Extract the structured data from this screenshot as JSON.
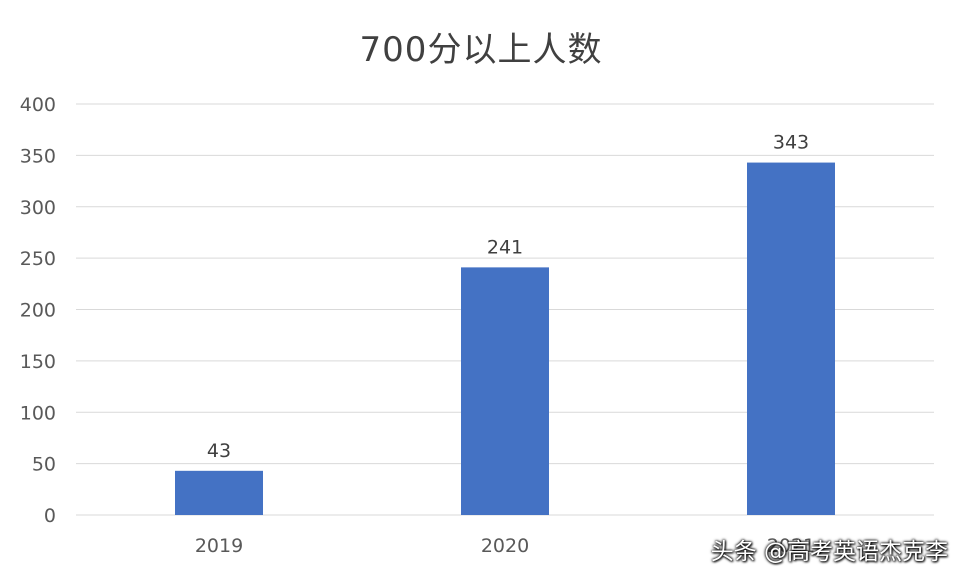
{
  "chart_data": {
    "type": "bar",
    "title": "700分以上人数",
    "categories": [
      "2019",
      "2020",
      "2021"
    ],
    "values": [
      43,
      241,
      343
    ],
    "ylim": [
      0,
      400
    ],
    "yticks": [
      0,
      50,
      100,
      150,
      200,
      250,
      300,
      350,
      400
    ],
    "grid": true,
    "bar_color": "#4472C4",
    "grid_color": "#D9D9D9"
  },
  "watermark": "头条 @高考英语杰克李"
}
